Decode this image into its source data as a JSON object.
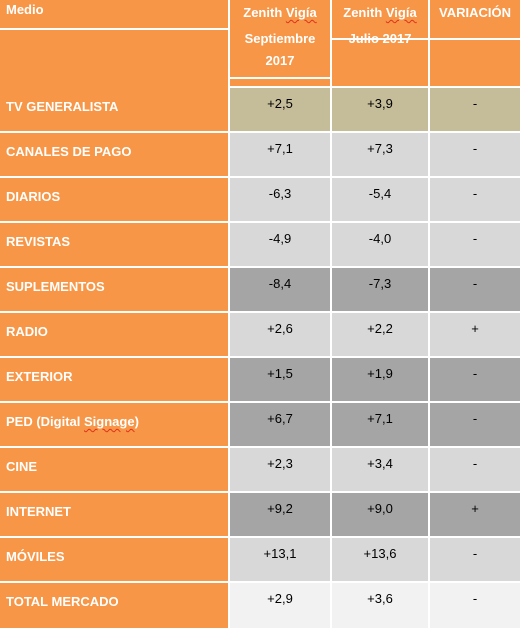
{
  "headers": {
    "medio": "Medio",
    "col1_line1": "Zenith Vigía",
    "col1_line2": "Septiembre",
    "col1_line3": "2017",
    "col2_line1": "Zenith Vigía",
    "col2_line2": "Julio 2017",
    "variacion": "VARIACIÓN"
  },
  "rows": [
    {
      "medio": "TV GENERALISTA",
      "sep": "+2,5",
      "jul": "+3,9",
      "var": "-",
      "color": "#c5bd9a"
    },
    {
      "medio": "CANALES DE PAGO",
      "sep": "+7,1",
      "jul": "+7,3",
      "var": "-",
      "color": "#d8d8d8"
    },
    {
      "medio": "DIARIOS",
      "sep": "-6,3",
      "jul": "-5,4",
      "var": "-",
      "color": "#d8d8d8"
    },
    {
      "medio": "REVISTAS",
      "sep": "-4,9",
      "jul": "-4,0",
      "var": "-",
      "color": "#d8d8d8"
    },
    {
      "medio": "SUPLEMENTOS",
      "sep": "-8,4",
      "jul": "-7,3",
      "var": "-",
      "color": "#a5a5a5"
    },
    {
      "medio": "RADIO",
      "sep": "+2,6",
      "jul": "+2,2",
      "var": "+",
      "color": "#d8d8d8"
    },
    {
      "medio": "EXTERIOR",
      "sep": "+1,5",
      "jul": "+1,9",
      "var": "-",
      "color": "#a5a5a5"
    },
    {
      "medio": "PED (Digital Signage)",
      "sep": "+6,7",
      "jul": "+7,1",
      "var": "-",
      "color": "#a5a5a5"
    },
    {
      "medio": "CINE",
      "sep": "+2,3",
      "jul": "+3,4",
      "var": "-",
      "color": "#d8d8d8"
    },
    {
      "medio": "INTERNET",
      "sep": "+9,2",
      "jul": "+9,0",
      "var": "+",
      "color": "#a5a5a5"
    },
    {
      "medio": "MÓVILES",
      "sep": "+13,1",
      "jul": "+13,6",
      "var": "-",
      "color": "#d8d8d8"
    },
    {
      "medio": "TOTAL MERCADO",
      "sep": "+2,9",
      "jul": "+3,6",
      "var": "-",
      "color": "#f2f2f2"
    }
  ],
  "colors": {
    "accent_orange": "#f79646",
    "tv_row": "#c5bd9a",
    "light_gray": "#d8d8d8",
    "dark_gray": "#a5a5a5",
    "total_row": "#f2f2f2"
  }
}
